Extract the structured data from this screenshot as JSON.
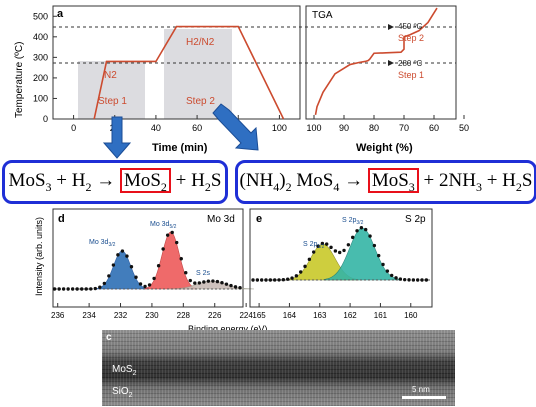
{
  "panel_a": {
    "label": "a",
    "tga_label": "TGA",
    "ylabel": "Temperature (ºC)",
    "xlabel_time": "Time (min)",
    "xlabel_weight": "Weight (%)",
    "y_ticks": [
      "0",
      "100",
      "200",
      "300",
      "400",
      "500"
    ],
    "time_ticks": [
      "0",
      "20",
      "40",
      "60",
      "80",
      "100"
    ],
    "weight_ticks": [
      "100",
      "90",
      "80",
      "70",
      "60",
      "50"
    ],
    "n2": "N2",
    "h2n2": "H2/N2",
    "step1": "Step 1",
    "step2": "Step 2",
    "t450": "450 ºC",
    "t280": "280 ºC",
    "r_step2": "Step 2",
    "r_step1": "Step 1",
    "accent": "#cc4b2f"
  },
  "chart_data": [
    {
      "type": "line",
      "title": "",
      "xlabel": "Time (min)",
      "ylabel": "Temperature (ºC)",
      "xlim": [
        -10,
        110
      ],
      "ylim": [
        0,
        550
      ],
      "x": [
        10,
        16,
        40,
        50,
        80,
        102
      ],
      "series": [
        {
          "values": [
            0,
            280,
            280,
            450,
            450,
            0
          ]
        }
      ],
      "annotations": [
        "N2",
        "H2/N2",
        "Step 1",
        "Step 2",
        "280 ºC",
        "450 ºC"
      ]
    },
    {
      "type": "line",
      "title": "TGA",
      "xlabel": "Weight (%)",
      "ylabel": "Temperature (ºC)",
      "xlim": [
        100,
        50
      ],
      "ylim": [
        0,
        550
      ],
      "x": [
        99.5,
        99,
        97,
        93,
        88,
        85,
        83,
        82,
        81.5,
        80,
        76,
        71,
        70,
        70,
        68,
        65,
        62,
        59
      ],
      "series": [
        {
          "values": [
            20,
            60,
            130,
            220,
            265,
            275,
            280,
            284,
            290,
            320,
            322,
            325,
            340,
            400,
            410,
            430,
            470,
            540
          ]
        }
      ]
    },
    {
      "type": "scatter",
      "title": "Mo 3d",
      "xlabel": "Binding energy (eV)",
      "ylabel": "Intensity (arb. units)",
      "xlim": [
        236,
        225
      ],
      "x_ticks": [
        236,
        234,
        232,
        230,
        228,
        226,
        224
      ],
      "peaks": [
        {
          "name": "Mo 3d3/2",
          "center": 231.9
        },
        {
          "name": "Mo 3d5/2",
          "center": 228.8
        },
        {
          "name": "S 2s",
          "center": 226.2
        }
      ]
    },
    {
      "type": "scatter",
      "title": "S 2p",
      "xlabel": "Binding energy (eV)",
      "ylabel": "",
      "xlim": [
        165,
        159
      ],
      "x_ticks": [
        165,
        164,
        163,
        162,
        161,
        160
      ],
      "peaks": [
        {
          "name": "S 2p1/2",
          "center": 162.9
        },
        {
          "name": "S 2p3/2",
          "center": 161.6
        }
      ]
    }
  ],
  "eq1": {
    "mos3": "MoS",
    "plus1": " + H",
    "arrow": " → ",
    "mos2": "MoS",
    "plus2": " + H",
    "s": "S"
  },
  "eq2": {
    "nh4": "(NH",
    "rest": ")",
    "mos4": " MoS",
    "arrow": " → ",
    "mos3": "MoS",
    "plus": " + 2NH",
    "plus2": " + H",
    "s": "S"
  },
  "panel_d": {
    "label": "d",
    "title": "Mo 3d",
    "ylabel": "Intensity (arb. units)",
    "p1": "Mo 3d",
    "p1sub": "3/2",
    "p2": "Mo 3d",
    "p2sub": "5/2",
    "p3": "S 2s",
    "ticks": [
      "236",
      "234",
      "232",
      "230",
      "228",
      "226",
      "224"
    ]
  },
  "panel_e": {
    "label": "e",
    "title": "S 2p",
    "p1": "S 2p",
    "p1sub": "1/2",
    "p2": "S 2p",
    "p2sub": "3/2",
    "ticks": [
      "165",
      "164",
      "163",
      "162",
      "161",
      "160"
    ]
  },
  "binding_label": "Binding energy (eV)",
  "tem": {
    "label": "c",
    "mos2": "MoS",
    "mos2sub": "2",
    "sio2": "SiO",
    "sio2sub": "2",
    "scale": "5 nm"
  }
}
